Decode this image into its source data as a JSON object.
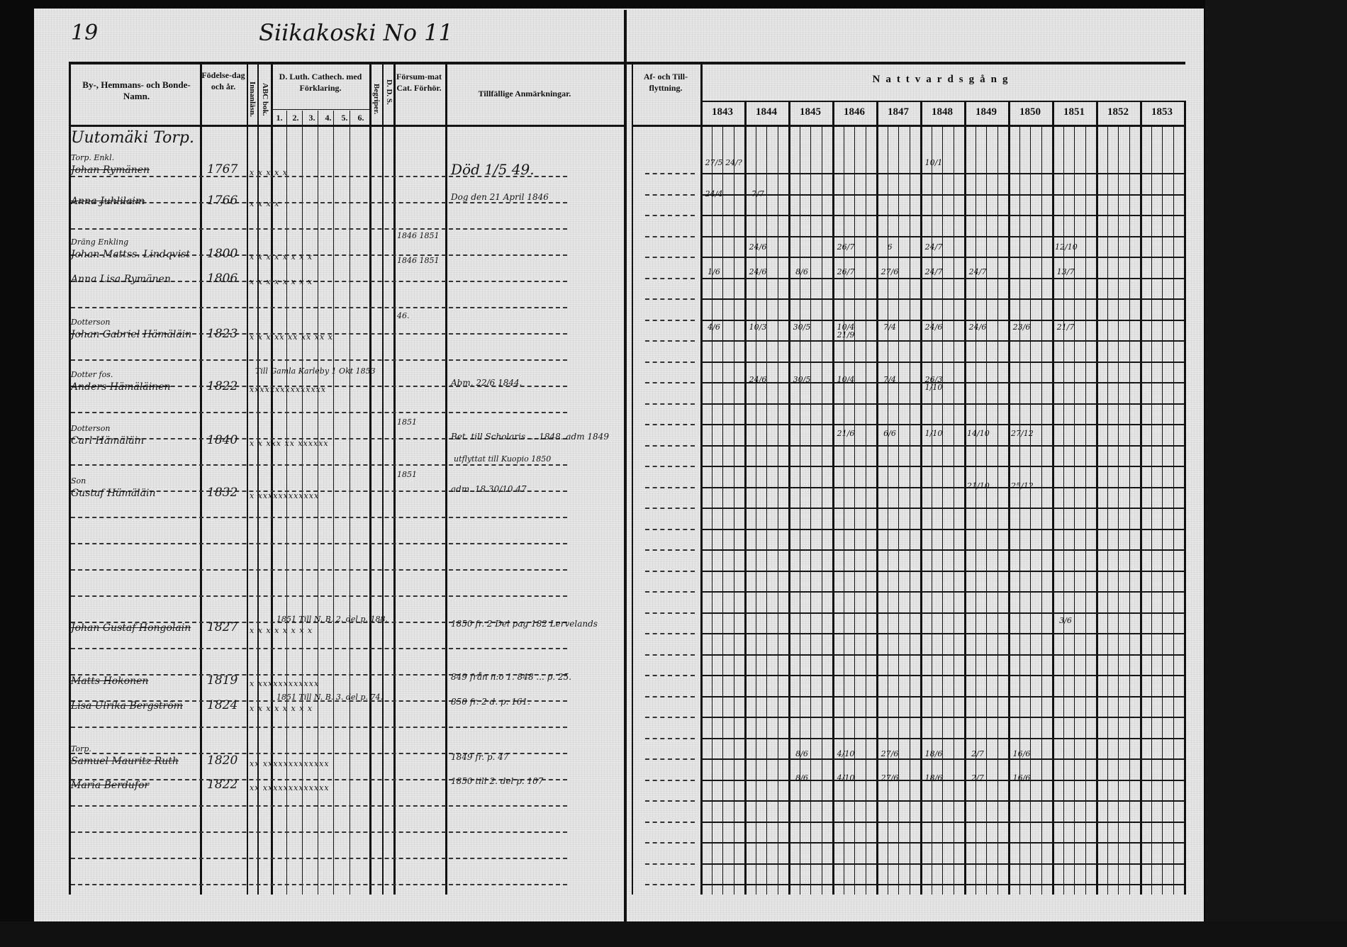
{
  "page_number": "19",
  "page_title": "Siikakoski No 11",
  "left_headers": {
    "name": "By-, Hemmans- och Bonde-Namn.",
    "birth": "Födelse-dag och år.",
    "innanlasn": "Innanläsn.",
    "abc": "ABC bok.",
    "catech": "D. Luth. Cathech. med Förklaring.",
    "catech_cols": [
      "1.",
      "2.",
      "3.",
      "4.",
      "5.",
      "6."
    ],
    "begriper": "Begriper.",
    "dd": "D. D. S.",
    "forsummat": "Försum-mat Cat. Förhör.",
    "remarks": "Tillfällige Anmärkningar."
  },
  "right_headers": {
    "moving": "Af- och Till-flyttning.",
    "communion": "Nattvardsgång",
    "years": [
      "1843",
      "1844",
      "1845",
      "1846",
      "1847",
      "1848",
      "1849",
      "1850",
      "1851",
      "1852",
      "1853"
    ]
  },
  "entries": [
    {
      "relation": "",
      "name": "Uutomäki Torp.",
      "birth": "",
      "marks": "",
      "forsummat": "",
      "remark": "",
      "struck": false
    },
    {
      "relation": "Torp. Enkl.",
      "name": "Johan Rymänen",
      "birth": "1767",
      "marks": "x  x  x  x  x",
      "forsummat": "",
      "remark": "Död 1/5 49.",
      "struck": true
    },
    {
      "relation": "",
      "name": "Anna Juhlilaim",
      "birth": "1766",
      "marks": "x  x  x  x",
      "forsummat": "",
      "remark": "Dog den 21 April 1846",
      "struck": true
    },
    {
      "relation": "Dräng   Enkling",
      "name": "Johan Mattss. Lindqvist",
      "birth": "1800",
      "marks": "x x x  x  x  x  x  x",
      "forsummat": "1846 1851",
      "remark": "",
      "struck": false
    },
    {
      "relation": "",
      "name": "Anna Lisa Rymänen",
      "birth": "1806",
      "marks": "x x x  x  x  x  x  x",
      "forsummat": "1846 1851",
      "remark": "",
      "struck": false
    },
    {
      "relation": "Dotterson",
      "name": "Johan Gabriel Hämäläin",
      "birth": "1823",
      "marks": "x x  x xx xx xx xx x",
      "forsummat": "46.",
      "remark": "",
      "struck": false
    },
    {
      "relation": "Dotter fos.",
      "name": "Anders Hämäläinen",
      "birth": "1822",
      "marks": "xxxxxxxxxxxxxxx",
      "forsummat": "",
      "remark": "Abm. 22/6 1844.",
      "note": "Till Gamla Karleby 1 Okt 1853",
      "struck": true
    },
    {
      "relation": "Dotterson",
      "name": "Carl Hämäläin",
      "birth": "1840",
      "marks": "x x xxx xx xxxxxx",
      "forsummat": "1851",
      "remark": "Bet. till Scholaris ... 1848. adm 1849",
      "note": "utflyttat till Kuopio 1850",
      "struck": false
    },
    {
      "relation": "Son",
      "name": "Gustaf Hämäläin",
      "birth": "1832",
      "marks": "x xxxxxxxxxxxx",
      "forsummat": "1851",
      "remark": "adm. 18 30/10 47",
      "struck": false
    },
    {
      "relation": "",
      "name": "Johan Gustaf Hongolain",
      "birth": "1827",
      "marks": "x x x  x  x  x  x  x",
      "forsummat": "1851 Till N. B. 2. del p. 188.",
      "remark": "1850 fr. 2 Del pag 182 Lervelands",
      "struck": true
    },
    {
      "relation": "",
      "name": "Matts Hokonen",
      "birth": "1819",
      "marks": "x xxxxxxxxxxxx",
      "forsummat": "",
      "remark": "849 från n:o 1. 848 ... p. 25.",
      "struck": true
    },
    {
      "relation": "",
      "name": "Lisa Ulrika Bergström",
      "birth": "1824",
      "marks": "x x  x  x  x  x  x  x",
      "forsummat": "1851 Till N. B. 3. del p. 74.",
      "remark": "850 fr. 2 d. p. 161.",
      "struck": true
    },
    {
      "relation": "Torp.",
      "name": "Samuel Mauritz Ruth",
      "birth": "1820",
      "marks": "xx xxxxxxxxxxxxx",
      "forsummat": "",
      "remark": "1849 fr. p. 47",
      "struck": true
    },
    {
      "relation": "",
      "name": "Maria Berdufor",
      "birth": "1822",
      "marks": "xx xxxxxxxxxxxxx",
      "forsummat": "",
      "remark": "1850 till 2. del p. 107",
      "struck": true
    }
  ],
  "communion_marks": [
    {
      "entry": 1,
      "year": "1843",
      "value": "27/5"
    },
    {
      "entry": 1,
      "year": "1843",
      "value": "24/?"
    },
    {
      "entry": 1,
      "year": "1848",
      "value": "10/1"
    },
    {
      "entry": 2,
      "year": "1843",
      "value": "24/4"
    },
    {
      "entry": 2,
      "year": "1844",
      "value": "7/7"
    },
    {
      "entry": 3,
      "year": "1844",
      "value": "24/6"
    },
    {
      "entry": 3,
      "year": "1846",
      "value": "26/7"
    },
    {
      "entry": 3,
      "year": "1847",
      "value": "6"
    },
    {
      "entry": 3,
      "year": "1848",
      "value": "24/7"
    },
    {
      "entry": 3,
      "year": "1851",
      "value": "12/10"
    },
    {
      "entry": 4,
      "year": "1843",
      "value": "1/6"
    },
    {
      "entry": 4,
      "year": "1844",
      "value": "24/6"
    },
    {
      "entry": 4,
      "year": "1845",
      "value": "8/6"
    },
    {
      "entry": 4,
      "year": "1846",
      "value": "26/7"
    },
    {
      "entry": 4,
      "year": "1847",
      "value": "27/6"
    },
    {
      "entry": 4,
      "year": "1848",
      "value": "24/7"
    },
    {
      "entry": 4,
      "year": "1849",
      "value": "24/7"
    },
    {
      "entry": 4,
      "year": "1851",
      "value": "13/7"
    },
    {
      "entry": 5,
      "year": "1843",
      "value": "4/6"
    },
    {
      "entry": 5,
      "year": "1844",
      "value": "10/3"
    },
    {
      "entry": 5,
      "year": "1845",
      "value": "30/5"
    },
    {
      "entry": 5,
      "year": "1846",
      "value": "10/4 21/9"
    },
    {
      "entry": 5,
      "year": "1847",
      "value": "7/4"
    },
    {
      "entry": 5,
      "year": "1848",
      "value": "24/6"
    },
    {
      "entry": 5,
      "year": "1849",
      "value": "24/6"
    },
    {
      "entry": 5,
      "year": "1850",
      "value": "23/6"
    },
    {
      "entry": 5,
      "year": "1851",
      "value": "21/7"
    },
    {
      "entry": 6,
      "year": "1844",
      "value": "24/6"
    },
    {
      "entry": 6,
      "year": "1845",
      "value": "30/5"
    },
    {
      "entry": 6,
      "year": "1846",
      "value": "10/4"
    },
    {
      "entry": 6,
      "year": "1847",
      "value": "7/4"
    },
    {
      "entry": 6,
      "year": "1848",
      "value": "26/3 1/10"
    },
    {
      "entry": 7,
      "year": "1846",
      "value": "21/6"
    },
    {
      "entry": 7,
      "year": "1847",
      "value": "6/6"
    },
    {
      "entry": 7,
      "year": "1848",
      "value": "1/10"
    },
    {
      "entry": 7,
      "year": "1849",
      "value": "14/10"
    },
    {
      "entry": 7,
      "year": "1850",
      "value": "27/12"
    },
    {
      "entry": 8,
      "year": "1849",
      "value": "21/10"
    },
    {
      "entry": 8,
      "year": "1850",
      "value": "25/12"
    },
    {
      "entry": 9,
      "year": "1851",
      "value": "3/6"
    },
    {
      "entry": 12,
      "year": "1845",
      "value": "8/6"
    },
    {
      "entry": 12,
      "year": "1846",
      "value": "4/10"
    },
    {
      "entry": 12,
      "year": "1847",
      "value": "27/6"
    },
    {
      "entry": 12,
      "year": "1848",
      "value": "18/6"
    },
    {
      "entry": 12,
      "year": "1849",
      "value": "2/7"
    },
    {
      "entry": 12,
      "year": "1850",
      "value": "16/6"
    },
    {
      "entry": 13,
      "year": "1845",
      "value": "8/6"
    },
    {
      "entry": 13,
      "year": "1846",
      "value": "4/10"
    },
    {
      "entry": 13,
      "year": "1847",
      "value": "27/6"
    },
    {
      "entry": 13,
      "year": "1848",
      "value": "18/6"
    },
    {
      "entry": 13,
      "year": "1849",
      "value": "2/7"
    },
    {
      "entry": 13,
      "year": "1850",
      "value": "16/6"
    }
  ]
}
